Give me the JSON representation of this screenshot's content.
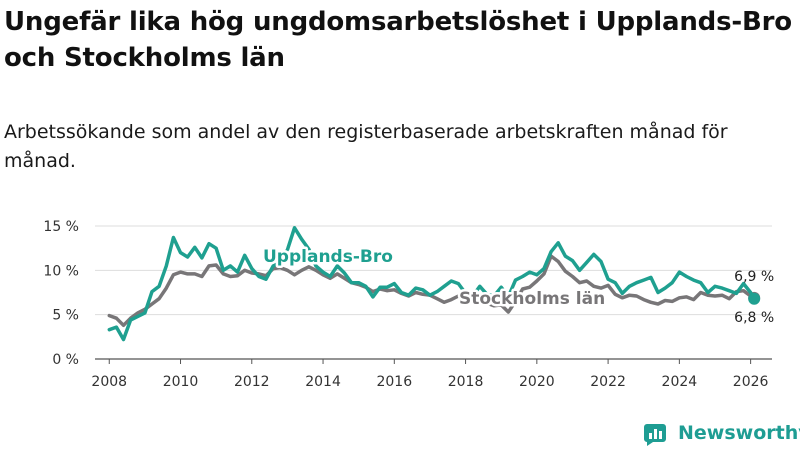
{
  "title": "Ungefär lika hög ungdomsarbetslöshet i Upplands-Bro och Stockholms län",
  "subtitle": "Arbetssökande som andel av den registerbaserade arbetskraften månad för månad.",
  "brand": "Newsworthy",
  "colors": {
    "upplands": "#1fa090",
    "stockholm": "#787678",
    "grid": "#dddddd",
    "axis": "#555555",
    "brand": "#1e9d93"
  },
  "chart_data": {
    "type": "line",
    "title": "Ungefär lika hög ungdomsarbetslöshet i Upplands-Bro och Stockholms län",
    "xlabel": "",
    "ylabel": "",
    "xlim": [
      2007.6,
      2026.6
    ],
    "ylim": [
      0,
      15
    ],
    "y_ticks": [
      0,
      5,
      10,
      15
    ],
    "y_tick_labels": [
      "0 %",
      "5 %",
      "10 %",
      "15 %"
    ],
    "x_ticks": [
      2008,
      2010,
      2012,
      2014,
      2016,
      2018,
      2020,
      2022,
      2024,
      2026
    ],
    "x_tick_labels": [
      "2008",
      "2010",
      "2012",
      "2014",
      "2016",
      "2018",
      "2020",
      "2022",
      "2024",
      "2026"
    ],
    "grid": true,
    "series": [
      {
        "name": "Stockholms län",
        "label": "Stockholms län",
        "end_label": "6,9 %",
        "x": [
          2008.0,
          2008.2,
          2008.4,
          2008.6,
          2008.8,
          2009.0,
          2009.2,
          2009.4,
          2009.6,
          2009.8,
          2010.0,
          2010.2,
          2010.4,
          2010.6,
          2010.8,
          2011.0,
          2011.2,
          2011.4,
          2011.6,
          2011.8,
          2012.0,
          2012.2,
          2012.4,
          2012.6,
          2012.8,
          2013.0,
          2013.2,
          2013.4,
          2013.6,
          2013.8,
          2014.0,
          2014.2,
          2014.4,
          2014.6,
          2014.8,
          2015.0,
          2015.2,
          2015.4,
          2015.6,
          2015.8,
          2016.0,
          2016.2,
          2016.4,
          2016.6,
          2016.8,
          2017.0,
          2017.2,
          2017.4,
          2017.6,
          2017.8,
          2018.0,
          2018.2,
          2018.4,
          2018.6,
          2018.8,
          2019.0,
          2019.2,
          2019.4,
          2019.6,
          2019.8,
          2020.0,
          2020.2,
          2020.4,
          2020.6,
          2020.8,
          2021.0,
          2021.2,
          2021.4,
          2021.6,
          2021.8,
          2022.0,
          2022.2,
          2022.4,
          2022.6,
          2022.8,
          2023.0,
          2023.2,
          2023.4,
          2023.6,
          2023.8,
          2024.0,
          2024.2,
          2024.4,
          2024.6,
          2024.8,
          2025.0,
          2025.2,
          2025.4,
          2025.6,
          2025.8,
          2026.0,
          2026.1
        ],
        "values": [
          4.9,
          4.6,
          3.8,
          4.6,
          5.2,
          5.6,
          6.2,
          6.8,
          8.0,
          9.5,
          9.8,
          9.6,
          9.6,
          9.3,
          10.5,
          10.6,
          9.6,
          9.3,
          9.4,
          10.0,
          9.7,
          9.6,
          9.4,
          10.2,
          10.3,
          10.0,
          9.5,
          10.0,
          10.4,
          10.0,
          9.5,
          9.1,
          9.6,
          9.1,
          8.6,
          8.4,
          8.1,
          7.6,
          7.9,
          7.7,
          7.8,
          7.4,
          7.1,
          7.5,
          7.3,
          7.2,
          6.8,
          6.4,
          6.7,
          7.1,
          6.7,
          6.5,
          6.8,
          6.3,
          6.0,
          6.1,
          5.3,
          6.5,
          7.9,
          8.1,
          8.8,
          9.6,
          11.6,
          11.0,
          9.9,
          9.3,
          8.6,
          8.8,
          8.2,
          8.0,
          8.3,
          7.3,
          6.9,
          7.2,
          7.1,
          6.7,
          6.4,
          6.2,
          6.6,
          6.5,
          6.9,
          7.0,
          6.7,
          7.5,
          7.2,
          7.1,
          7.2,
          6.8,
          7.6,
          7.7,
          7.1,
          6.9
        ]
      },
      {
        "name": "Upplands-Bro",
        "label": "Upplands-Bro",
        "end_label": "6,8 %",
        "x": [
          2008.0,
          2008.2,
          2008.4,
          2008.6,
          2008.8,
          2009.0,
          2009.2,
          2009.4,
          2009.6,
          2009.8,
          2010.0,
          2010.2,
          2010.4,
          2010.6,
          2010.8,
          2011.0,
          2011.2,
          2011.4,
          2011.6,
          2011.8,
          2012.0,
          2012.2,
          2012.4,
          2012.6,
          2012.8,
          2013.0,
          2013.2,
          2013.4,
          2013.6,
          2013.8,
          2014.0,
          2014.2,
          2014.4,
          2014.6,
          2014.8,
          2015.0,
          2015.2,
          2015.4,
          2015.6,
          2015.8,
          2016.0,
          2016.2,
          2016.4,
          2016.6,
          2016.8,
          2017.0,
          2017.2,
          2017.4,
          2017.6,
          2017.8,
          2018.0,
          2018.2,
          2018.4,
          2018.6,
          2018.8,
          2019.0,
          2019.2,
          2019.4,
          2019.6,
          2019.8,
          2020.0,
          2020.2,
          2020.4,
          2020.6,
          2020.8,
          2021.0,
          2021.2,
          2021.4,
          2021.6,
          2021.8,
          2022.0,
          2022.2,
          2022.4,
          2022.6,
          2022.8,
          2023.0,
          2023.2,
          2023.4,
          2023.6,
          2023.8,
          2024.0,
          2024.2,
          2024.4,
          2024.6,
          2024.8,
          2025.0,
          2025.2,
          2025.4,
          2025.6,
          2025.8,
          2026.0,
          2026.1
        ],
        "values": [
          3.3,
          3.6,
          2.2,
          4.4,
          4.8,
          5.2,
          7.6,
          8.2,
          10.5,
          13.7,
          12.0,
          11.5,
          12.6,
          11.4,
          13.0,
          12.5,
          10.0,
          10.5,
          9.8,
          11.7,
          10.2,
          9.3,
          9.0,
          10.5,
          10.9,
          12.3,
          14.8,
          13.5,
          12.4,
          10.5,
          9.8,
          9.3,
          10.5,
          9.7,
          8.6,
          8.6,
          8.2,
          7.0,
          8.1,
          8.1,
          8.5,
          7.5,
          7.2,
          8.0,
          7.8,
          7.2,
          7.6,
          8.2,
          8.8,
          8.5,
          7.4,
          7.1,
          8.2,
          7.3,
          7.1,
          8.1,
          7.0,
          8.9,
          9.3,
          9.8,
          9.5,
          10.2,
          12.1,
          13.1,
          11.6,
          11.1,
          10.0,
          10.9,
          11.8,
          11.0,
          9.0,
          8.6,
          7.4,
          8.2,
          8.6,
          8.9,
          9.2,
          7.5,
          8.0,
          8.6,
          9.8,
          9.3,
          8.9,
          8.6,
          7.5,
          8.2,
          8.0,
          7.7,
          7.4,
          8.5,
          7.5,
          6.8
        ]
      }
    ]
  }
}
